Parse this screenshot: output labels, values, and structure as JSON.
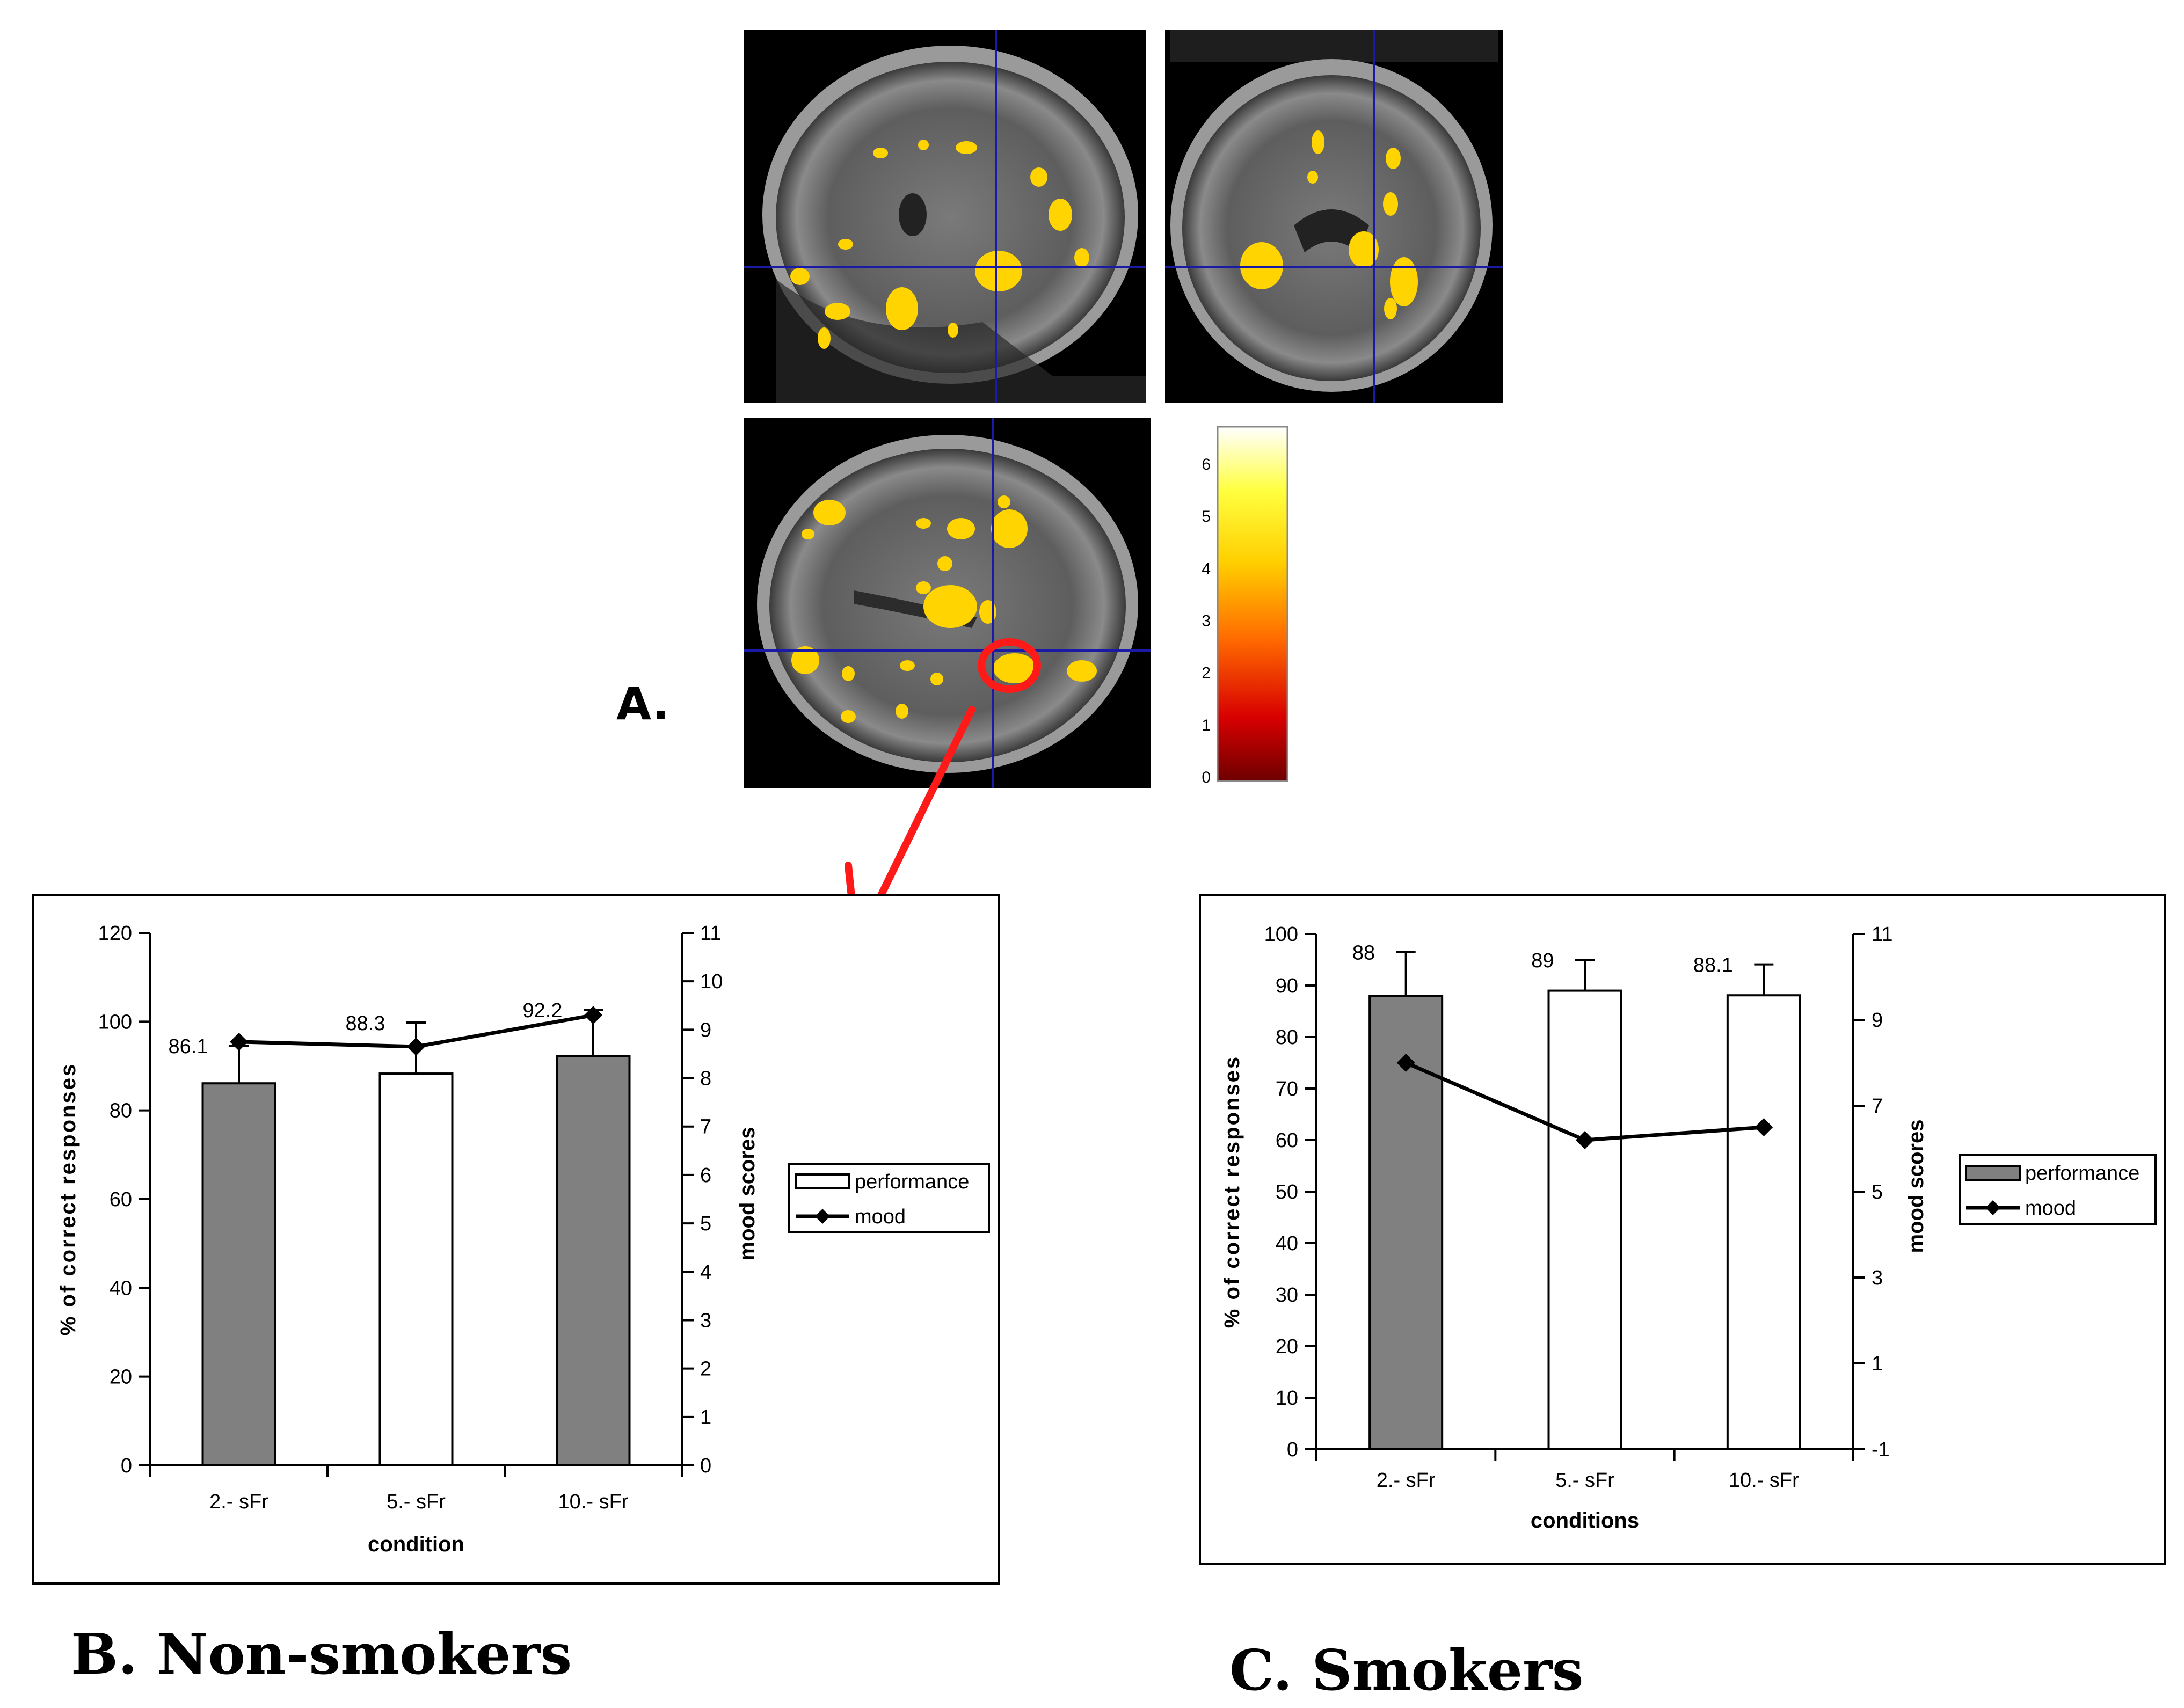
{
  "labels": {
    "panel_a": "A.",
    "panel_b": "B. Non-smokers",
    "panel_c": "C. Smokers"
  },
  "colorbar": {
    "ticks": [
      "0",
      "1",
      "2",
      "3",
      "4",
      "5",
      "6"
    ]
  },
  "chart_data": [
    {
      "id": "non-smokers",
      "type": "bar",
      "title": "",
      "xlabel": "condition",
      "ylabel": "% of correct responses",
      "y2label": "mood scores",
      "categories": [
        "2.- sFr",
        "5.- sFr",
        "10.- sFr"
      ],
      "ylim": [
        0,
        120
      ],
      "yticks": [
        0,
        20,
        40,
        60,
        80,
        100,
        120
      ],
      "y2lim": [
        0,
        11
      ],
      "y2ticks": [
        0,
        1,
        2,
        3,
        4,
        5,
        6,
        7,
        8,
        9,
        10,
        11
      ],
      "series": [
        {
          "name": "performance",
          "kind": "bar",
          "axis": "left",
          "values": [
            86.1,
            88.3,
            92.2
          ],
          "errors": [
            8.5,
            11.5,
            10.5
          ],
          "value_labels": [
            "86.1",
            "88.3",
            "92.2"
          ],
          "colors": [
            "#808080",
            "#ffffff",
            "#808080"
          ]
        },
        {
          "name": "mood",
          "kind": "line",
          "axis": "right",
          "values": [
            8.75,
            8.65,
            9.3
          ]
        }
      ],
      "legend": {
        "position": "right",
        "entries": [
          "performance",
          "mood"
        ]
      }
    },
    {
      "id": "smokers",
      "type": "bar",
      "title": "",
      "xlabel": "conditions",
      "ylabel": "% of correct responses",
      "y2label": "mood scores",
      "categories": [
        "2.- sFr",
        "5.- sFr",
        "10.- sFr"
      ],
      "ylim": [
        0,
        100
      ],
      "yticks": [
        0,
        10,
        20,
        30,
        40,
        50,
        60,
        70,
        80,
        90,
        100
      ],
      "y2lim": [
        -1,
        11
      ],
      "y2ticks": [
        -1,
        1,
        3,
        5,
        7,
        9,
        11
      ],
      "series": [
        {
          "name": "performance",
          "kind": "bar",
          "axis": "left",
          "values": [
            88,
            89,
            88.1
          ],
          "errors": [
            8.5,
            6,
            6
          ],
          "value_labels": [
            "88",
            "89",
            "88.1"
          ],
          "colors": [
            "#808080",
            "#ffffff",
            "#ffffff"
          ]
        },
        {
          "name": "mood",
          "kind": "line",
          "axis": "right",
          "values": [
            8.0,
            6.2,
            6.5
          ]
        }
      ],
      "legend": {
        "position": "right",
        "entries": [
          "performance",
          "mood"
        ]
      }
    }
  ]
}
